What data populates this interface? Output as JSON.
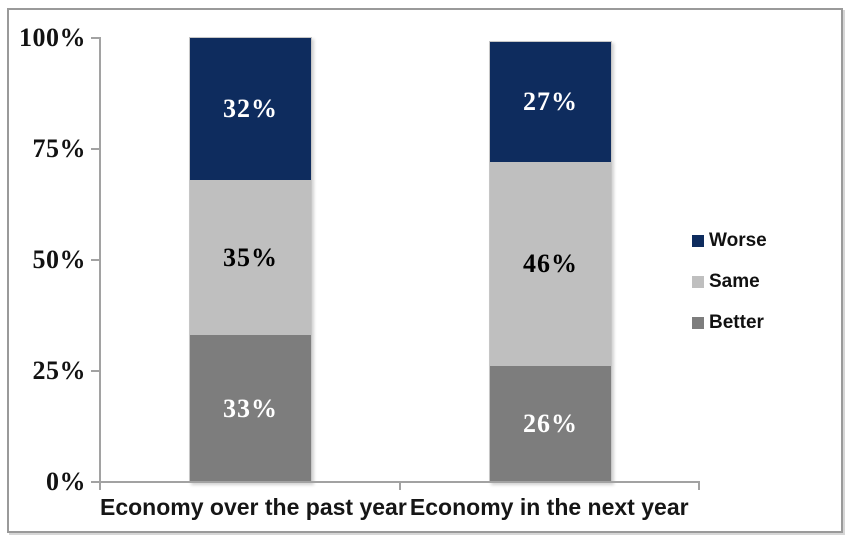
{
  "chart_data": {
    "type": "bar",
    "stacked": true,
    "title": "",
    "categories": [
      "Economy over the past year",
      "Economy in the next year"
    ],
    "series": [
      {
        "name": "Better",
        "values": [
          33,
          26
        ],
        "color": "#7d7d7d",
        "label_color": "#ffffff"
      },
      {
        "name": "Same",
        "values": [
          35,
          46
        ],
        "color": "#bfbfbf",
        "label_color": "#000000"
      },
      {
        "name": "Worse",
        "values": [
          32,
          27
        ],
        "color": "#0e2c5e",
        "label_color": "#ffffff"
      }
    ],
    "value_suffix": "%",
    "yticks": [
      "0%",
      "25%",
      "50%",
      "75%",
      "100%"
    ],
    "ytick_values": [
      0,
      25,
      50,
      75,
      100
    ],
    "ylim": [
      0,
      100
    ],
    "grid": false,
    "legend": {
      "position": "right",
      "order": [
        "Worse",
        "Same",
        "Better"
      ]
    }
  },
  "colors": {
    "axis": "#a2a2a2",
    "frame_border": "#9a9a9a",
    "background": "#ffffff"
  }
}
